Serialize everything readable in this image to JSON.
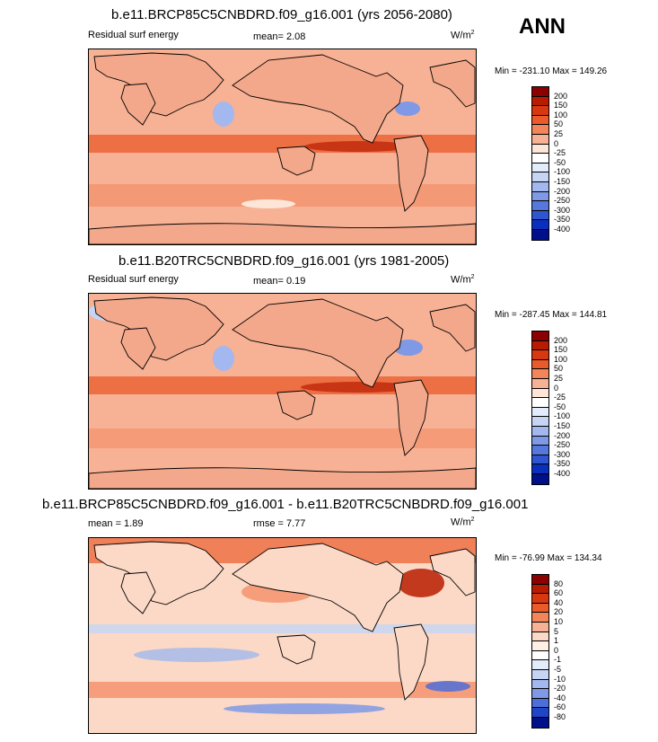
{
  "season": "ANN",
  "units_base": "W/m",
  "units_exp": "2",
  "land": {
    "color": "#f4a88b",
    "coast": "#000000"
  },
  "panels": [
    {
      "title": "b.e11.BRCP85C5CNBDRD.f09_g16.001 (yrs 2056-2080)",
      "left_label": "Residual surf energy",
      "center_label": "mean=  2.08",
      "min_max": "Min = -231.10 Max = 149.26",
      "levels": [
        "200",
        "150",
        "100",
        "50",
        "25",
        "0",
        "-25",
        "-50",
        "-100",
        "-150",
        "-200",
        "-250",
        "-300",
        "-350",
        "-400"
      ],
      "ocean": "#f7b195"
    },
    {
      "title": "b.e11.B20TRC5CNBDRD.f09_g16.001 (yrs 1981-2005)",
      "left_label": "Residual surf energy",
      "center_label": "mean=  0.19",
      "min_max": "Min = -287.45 Max = 144.81",
      "levels": [
        "200",
        "150",
        "100",
        "50",
        "25",
        "0",
        "-25",
        "-50",
        "-100",
        "-150",
        "-200",
        "-250",
        "-300",
        "-350",
        "-400"
      ],
      "ocean": "#f7b195"
    },
    {
      "title": "b.e11.BRCP85C5CNBDRD.f09_g16.001 - b.e11.B20TRC5CNBDRD.f09_g16.001",
      "left_label": "mean =  1.89",
      "center_label": "rmse =  7.77",
      "min_max": "Min = -76.99 Max = 134.34",
      "levels": [
        "80",
        "60",
        "40",
        "20",
        "10",
        "5",
        "1",
        "0",
        "-1",
        "-5",
        "-10",
        "-20",
        "-40",
        "-60",
        "-80"
      ],
      "ocean": "#fbd9c6"
    }
  ],
  "colors_abs": [
    "#8b0000",
    "#b81c00",
    "#d83810",
    "#ea5a2a",
    "#f3855b",
    "#f7b195",
    "#fde6d8",
    "#ffffff",
    "#e3ecfa",
    "#c6d5f4",
    "#a3b8ee",
    "#7f99e6",
    "#5677dc",
    "#2f55d0",
    "#0b2fbd",
    "#00108a"
  ],
  "colors_diff": [
    "#8b0000",
    "#b81c00",
    "#d83810",
    "#ea5a2a",
    "#f3855b",
    "#f7b195",
    "#fbd9c6",
    "#fff0e6",
    "#ffffff",
    "#e3ecfa",
    "#c6d5f4",
    "#a3b8ee",
    "#7f99e6",
    "#4d6fd9",
    "#2046c8",
    "#00108a"
  ]
}
